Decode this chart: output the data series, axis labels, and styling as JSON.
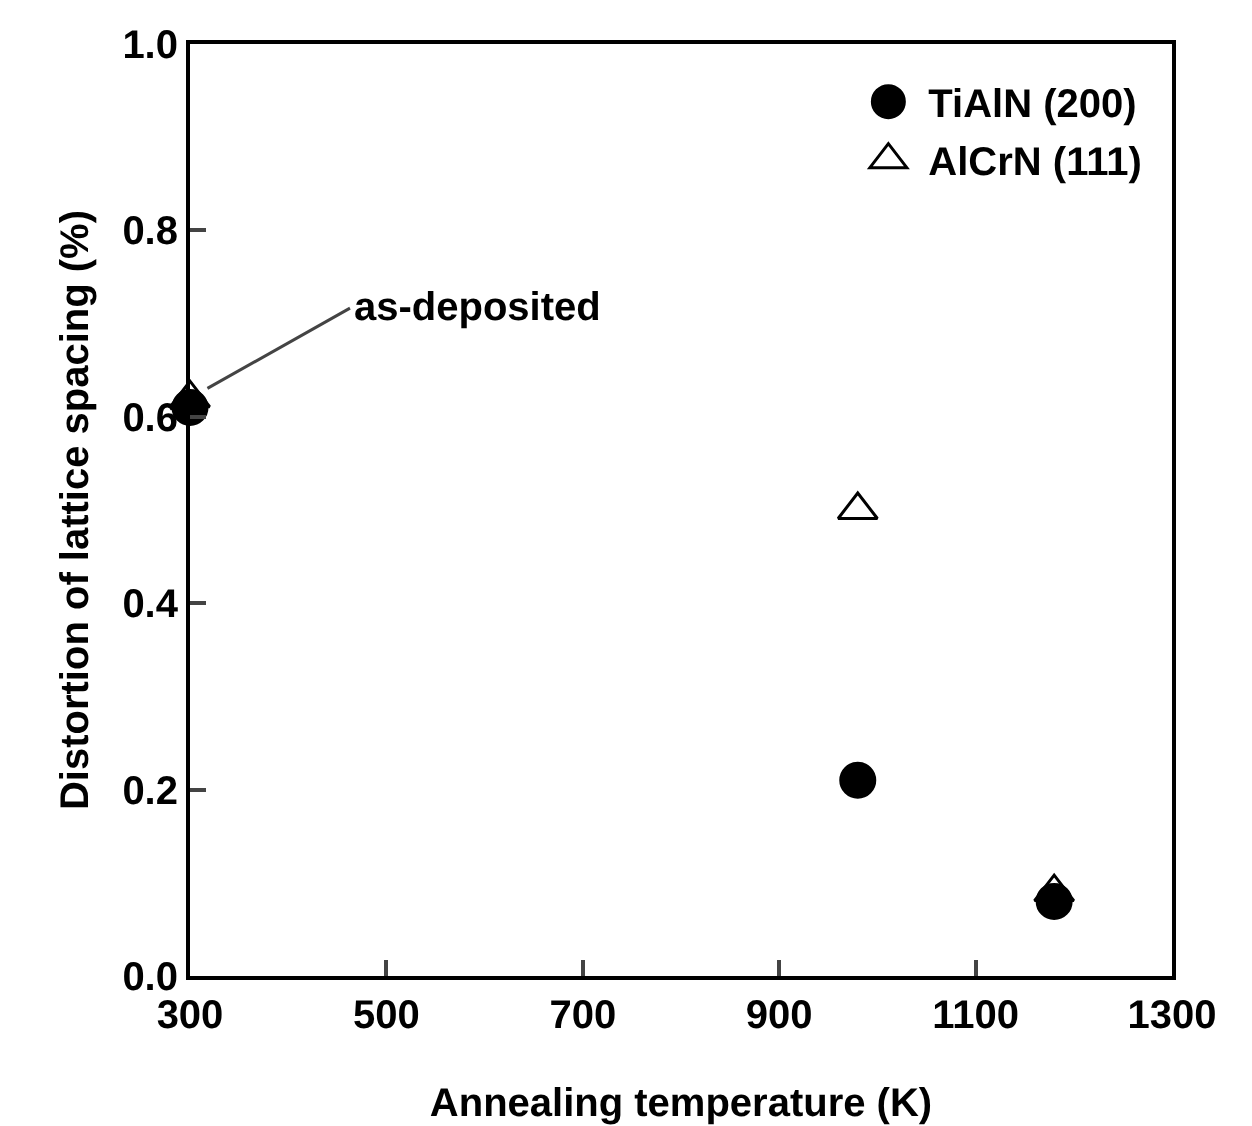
{
  "chart_data": {
    "type": "scatter",
    "xlabel": "Annealing temperature (K)",
    "ylabel": "Distortion of lattice spacing (%)",
    "x": [
      300,
      980,
      1180
    ],
    "series": [
      {
        "name": "TiAlN (200)",
        "color": "#000000",
        "marker": "circle",
        "values": [
          0.61,
          0.21,
          0.08
        ]
      },
      {
        "name": "AlCrN (111)",
        "color": "#000000",
        "marker": "triangle",
        "values": [
          0.62,
          0.5,
          0.09
        ]
      }
    ],
    "xlim": [
      300,
      1300
    ],
    "xticks": [
      300,
      500,
      700,
      900,
      1100,
      1300
    ],
    "ylim": [
      0,
      1.0
    ],
    "yticks": [
      {
        "value": 0,
        "label": "0.0"
      },
      {
        "value": 0.2,
        "label": "0.2"
      },
      {
        "value": 0.4,
        "label": "0.4"
      },
      {
        "value": 0.6,
        "label": "0.6"
      },
      {
        "value": 0.8,
        "label": "0.8"
      },
      {
        "value": 1.0,
        "label": "1.0"
      }
    ],
    "annotations": [
      {
        "text": "as-deposited",
        "x": 300,
        "y": 0.62
      }
    ],
    "grid": false,
    "legend": "top right"
  }
}
